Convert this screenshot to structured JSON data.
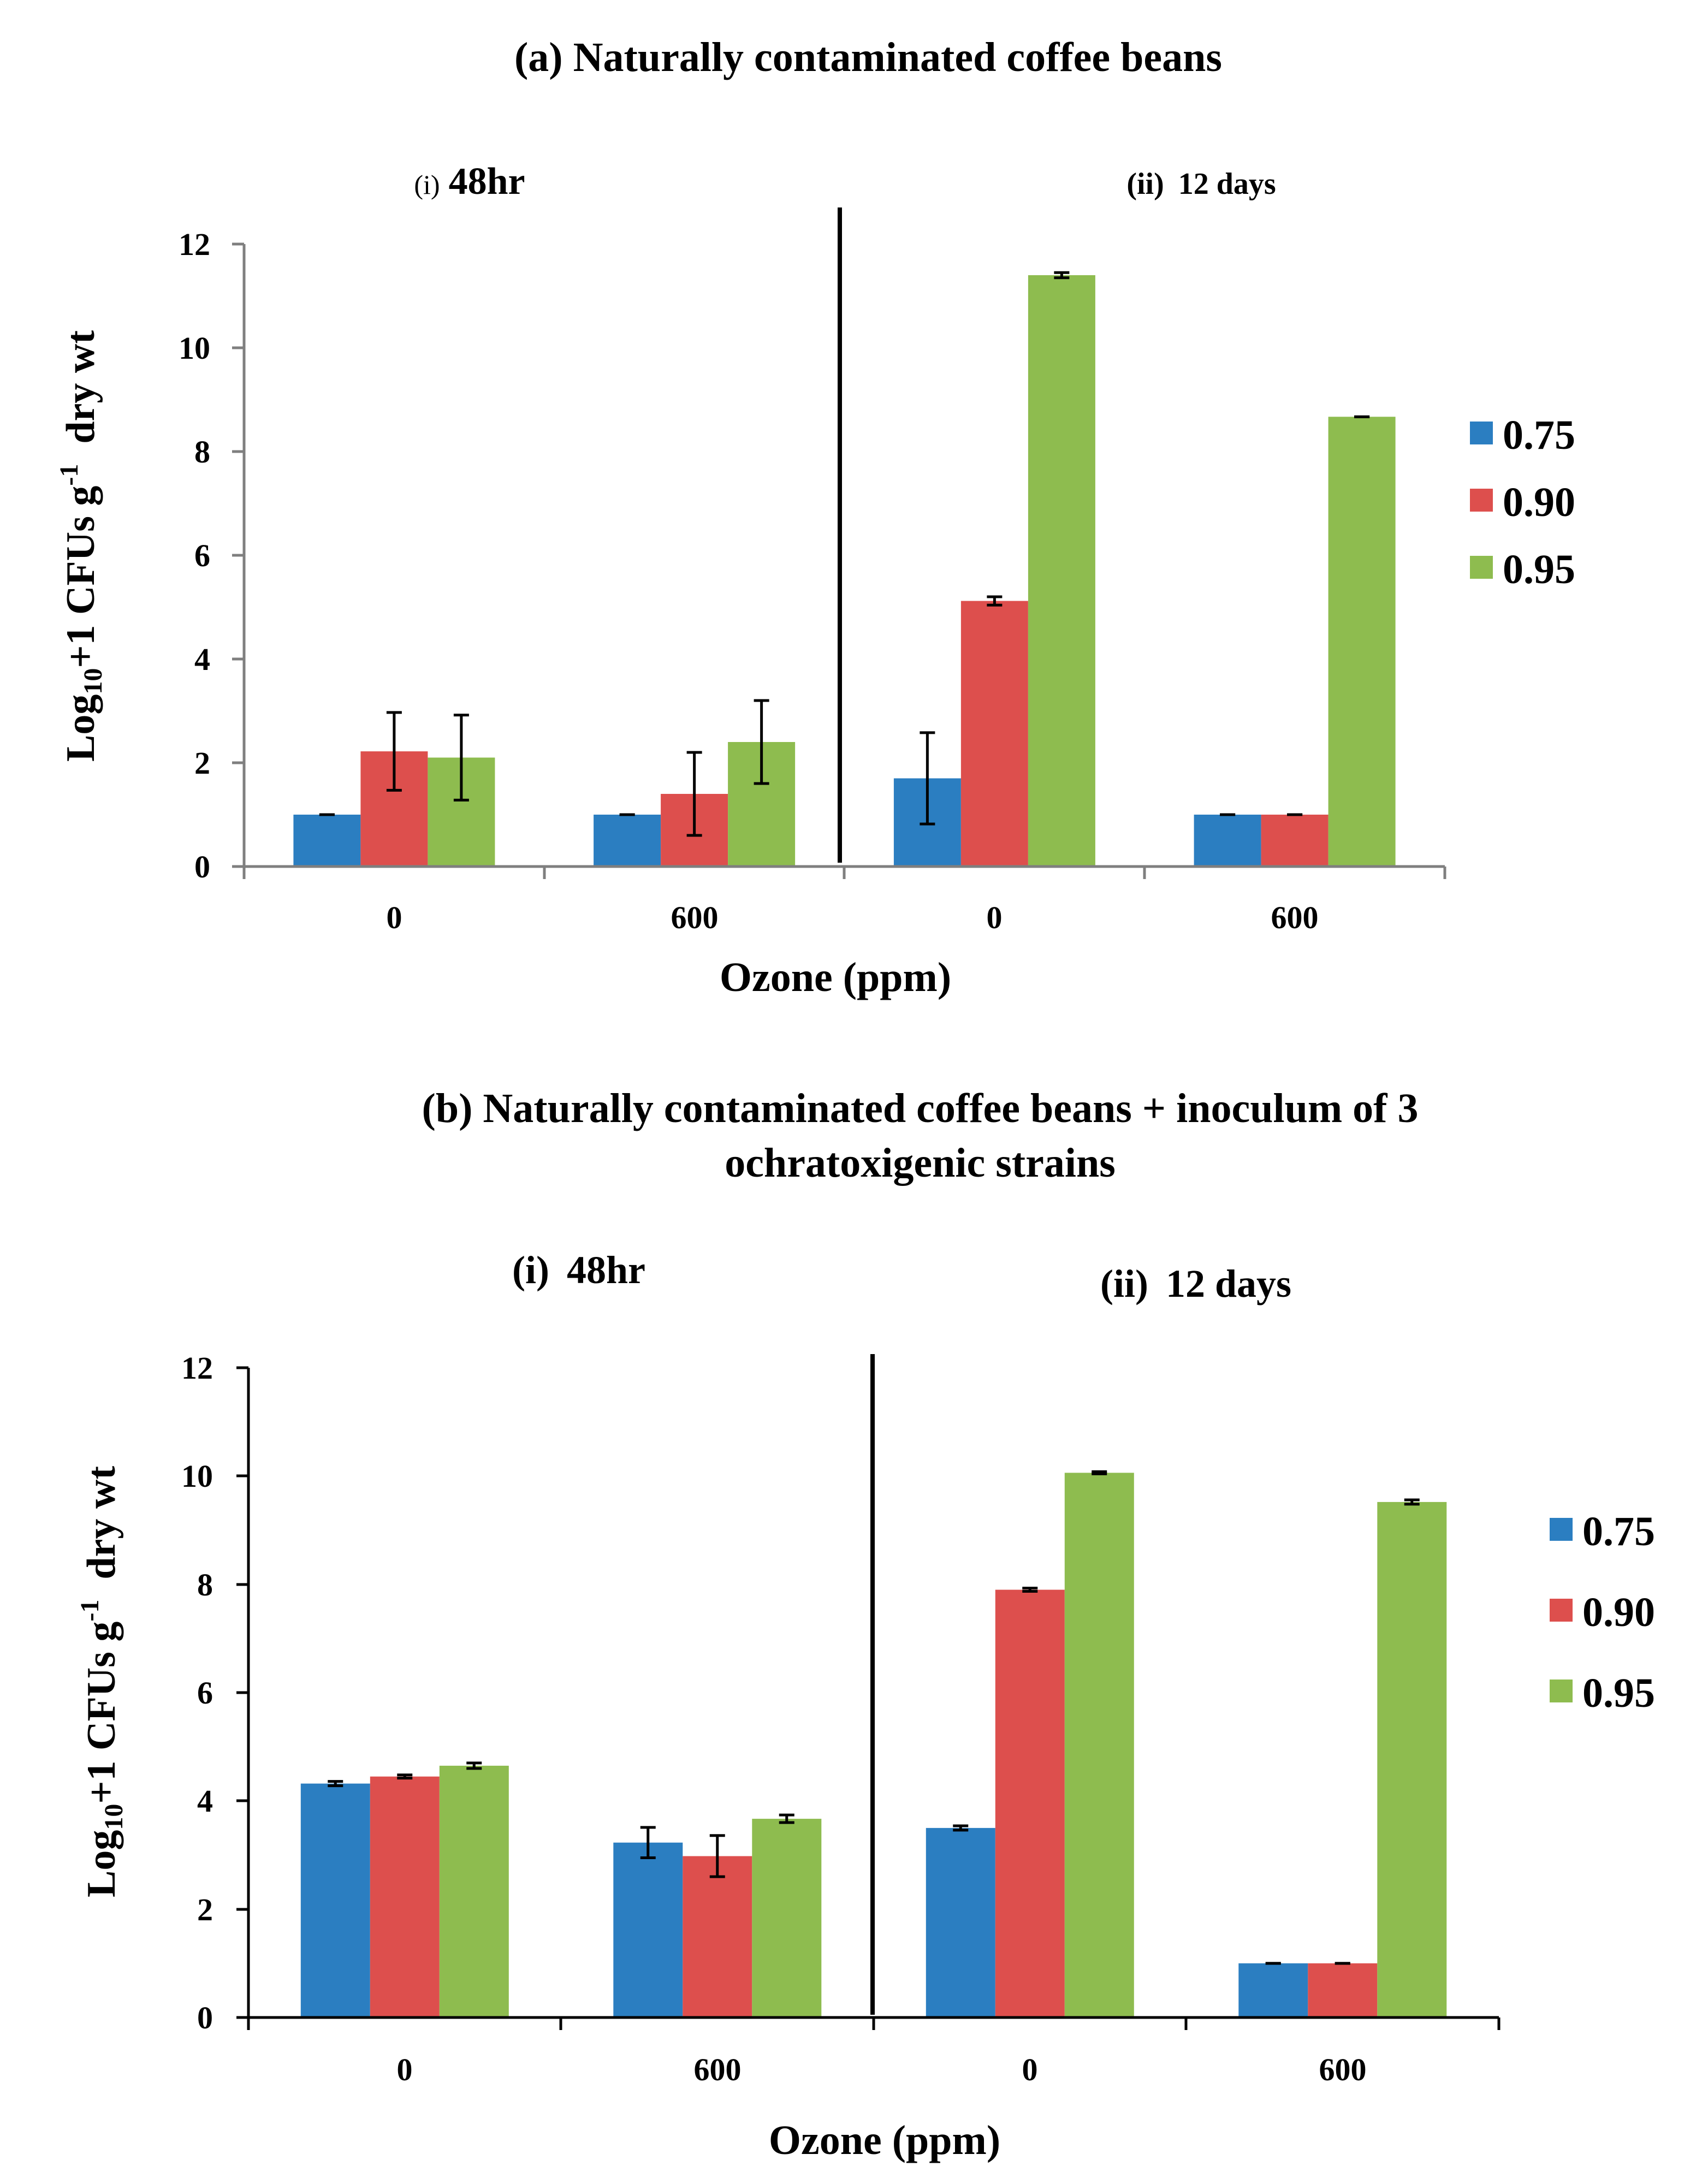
{
  "chart_data": [
    {
      "type": "bar",
      "title": "(a) Naturally contaminated coffee beans",
      "xlabel": "Ozone (ppm)",
      "ylabel_main": "Log",
      "ylabel_sub": "10",
      "ylabel_mid": "+1 CFUs g",
      "ylabel_sup": "-1",
      "ylabel_tail": "  dry wt",
      "ylim": [
        0,
        12
      ],
      "yticks": [
        "0",
        "2",
        "4",
        "6",
        "8",
        "10",
        "12"
      ],
      "panels": [
        {
          "prefix": "(i)",
          "name": "48hr"
        },
        {
          "prefix": "(ii)",
          "name": "12 days"
        }
      ],
      "categories": [
        "0",
        "600",
        "0",
        "600"
      ],
      "legend_position": "right",
      "series": [
        {
          "name": "0.75",
          "color": "#2b7ec1",
          "values": [
            1.0,
            1.0,
            1.7,
            1.0
          ],
          "errors": [
            0.0,
            0.0,
            0.88,
            0.0
          ]
        },
        {
          "name": "0.90",
          "color": "#dd4f4d",
          "values": [
            2.22,
            1.4,
            5.12,
            1.0
          ],
          "errors": [
            0.75,
            0.8,
            0.08,
            0.0
          ]
        },
        {
          "name": "0.95",
          "color": "#8ebc4f",
          "values": [
            2.1,
            2.4,
            11.4,
            8.67
          ],
          "errors": [
            0.82,
            0.8,
            0.05,
            0.0
          ]
        }
      ]
    },
    {
      "type": "bar",
      "title_line1": "(b) Naturally contaminated coffee beans + inoculum of 3",
      "title_line2": "ochratoxigenic strains",
      "xlabel": "Ozone (ppm)",
      "ylabel_main": "Log",
      "ylabel_sub": "10",
      "ylabel_mid": "+1 CFUs g",
      "ylabel_sup": "-1",
      "ylabel_tail": "  dry wt",
      "ylim": [
        0,
        12
      ],
      "yticks": [
        "0",
        "2",
        "4",
        "6",
        "8",
        "10",
        "12"
      ],
      "panels": [
        {
          "prefix": "(i)",
          "name": "48hr"
        },
        {
          "prefix": "(ii)",
          "name": "12 days"
        }
      ],
      "categories": [
        "0",
        "600",
        "0",
        "600"
      ],
      "legend_position": "right",
      "series": [
        {
          "name": "0.75",
          "color": "#2b7ec1",
          "values": [
            4.32,
            3.23,
            3.5,
            1.0
          ],
          "errors": [
            0.04,
            0.28,
            0.04,
            0.0
          ]
        },
        {
          "name": "0.90",
          "color": "#dd4f4d",
          "values": [
            4.45,
            2.98,
            7.9,
            1.0
          ],
          "errors": [
            0.03,
            0.38,
            0.03,
            0.0
          ]
        },
        {
          "name": "0.95",
          "color": "#8ebc4f",
          "values": [
            4.65,
            3.67,
            10.06,
            9.52
          ],
          "errors": [
            0.05,
            0.07,
            0.02,
            0.04
          ]
        }
      ]
    }
  ]
}
